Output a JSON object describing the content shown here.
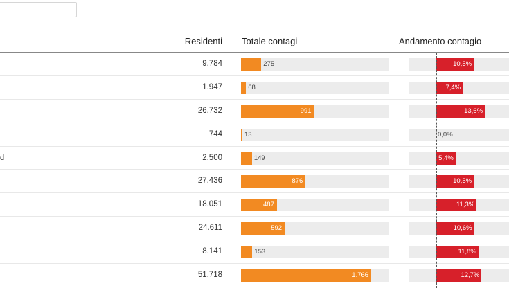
{
  "search": {
    "placeholder": ""
  },
  "table": {
    "columns": {
      "residenti": "Residenti",
      "totale": "Totale contagi",
      "andamento": "Andamento contagio"
    },
    "rows": [
      {
        "name": "",
        "residenti": "9.784",
        "totale_label": "275",
        "totale_value": 275,
        "andamento_label": "10,5%",
        "andamento_value": 10.5
      },
      {
        "name": "",
        "residenti": "1.947",
        "totale_label": "68",
        "totale_value": 68,
        "andamento_label": "7,4%",
        "andamento_value": 7.4
      },
      {
        "name": "",
        "residenti": "26.732",
        "totale_label": "991",
        "totale_value": 991,
        "andamento_label": "13,6%",
        "andamento_value": 13.6
      },
      {
        "name": "",
        "residenti": "744",
        "totale_label": "13",
        "totale_value": 13,
        "andamento_label": "0,0%",
        "andamento_value": 0.0
      },
      {
        "name": "d",
        "residenti": "2.500",
        "totale_label": "149",
        "totale_value": 149,
        "andamento_label": "5,4%",
        "andamento_value": 5.4
      },
      {
        "name": "",
        "residenti": "27.436",
        "totale_label": "876",
        "totale_value": 876,
        "andamento_label": "10,5%",
        "andamento_value": 10.5
      },
      {
        "name": "",
        "residenti": "18.051",
        "totale_label": "487",
        "totale_value": 487,
        "andamento_label": "11,3%",
        "andamento_value": 11.3
      },
      {
        "name": "",
        "residenti": "24.611",
        "totale_label": "592",
        "totale_value": 592,
        "andamento_label": "10,6%",
        "andamento_value": 10.6
      },
      {
        "name": "",
        "residenti": "8.141",
        "totale_label": "153",
        "totale_value": 153,
        "andamento_label": "11,8%",
        "andamento_value": 11.8
      },
      {
        "name": "",
        "residenti": "51.718",
        "totale_label": "1.766",
        "totale_value": 1766,
        "andamento_label": "12,7%",
        "andamento_value": 12.7
      }
    ]
  },
  "colors": {
    "totale_bar": "#f28a22",
    "andamento_bar": "#d7202a",
    "track": "#ececec"
  }
}
